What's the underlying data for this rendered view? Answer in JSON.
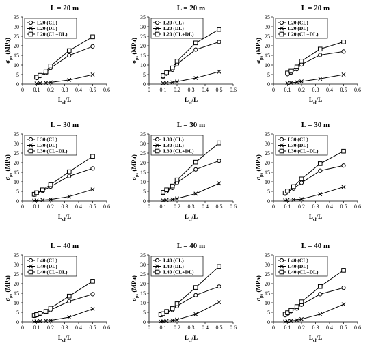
{
  "figure": {
    "panels": [
      {
        "row": 0,
        "col": 0,
        "title": "L = 20 m"
      },
      {
        "row": 0,
        "col": 1,
        "title": "L = 20 m"
      },
      {
        "row": 0,
        "col": 2,
        "title": "L = 20 m"
      },
      {
        "row": 1,
        "col": 0,
        "title": "L = 30 m"
      },
      {
        "row": 1,
        "col": 1,
        "title": "L = 30 m"
      },
      {
        "row": 1,
        "col": 2,
        "title": "L = 30 m"
      },
      {
        "row": 2,
        "col": 0,
        "title": "L = 40 m"
      },
      {
        "row": 2,
        "col": 1,
        "title": "L = 40 m"
      },
      {
        "row": 2,
        "col": 2,
        "title": "L = 40 m"
      }
    ]
  },
  "chart_data": [
    {
      "type": "line",
      "title": "L = 20 m",
      "xlabel": "Lcl/L",
      "xlabel_main": "L",
      "xlabel_sub": "cl",
      "xlabel_suffix": "/L",
      "ylabel_main": "σ",
      "ylabel_sub": "ps",
      "ylabel_suffix": " (MPa)",
      "xlim": [
        0,
        0.6
      ],
      "ylim": [
        0,
        35
      ],
      "xticks": [
        "0",
        "0.1",
        "0.2",
        "0.3",
        "0.4",
        "0.5",
        "0.6"
      ],
      "yticks": [
        "0",
        "5",
        "10",
        "15",
        "20",
        "25",
        "30",
        "35"
      ],
      "legend_position": "top-left",
      "grid": false,
      "x": [
        0.1,
        0.125,
        0.1667,
        0.2,
        0.333,
        0.5
      ],
      "series": [
        {
          "name": "L20 (CL)",
          "marker": "circle",
          "values": [
            3.2,
            4.2,
            5.8,
            8.5,
            15.0,
            19.7
          ]
        },
        {
          "name": "L20 (DL)",
          "marker": "x",
          "values": [
            0.3,
            0.4,
            0.6,
            0.9,
            2.2,
            5.0
          ]
        },
        {
          "name": "L20 (CL+DL)",
          "marker": "square",
          "values": [
            3.6,
            4.6,
            6.4,
            9.5,
            17.5,
            24.7
          ]
        }
      ]
    },
    {
      "type": "line",
      "title": "L = 20 m",
      "xlabel": "Lcl/L",
      "xlabel_main": "L",
      "xlabel_sub": "cl",
      "xlabel_suffix": "/L",
      "ylabel_main": "σ",
      "ylabel_sub": "ps",
      "ylabel_suffix": " (MPa)",
      "xlim": [
        0,
        0.6
      ],
      "ylim": [
        0,
        35
      ],
      "xticks": [
        "0",
        "0.1",
        "0.2",
        "0.3",
        "0.4",
        "0.5",
        "0.6"
      ],
      "yticks": [
        "0",
        "5",
        "10",
        "15",
        "20",
        "25",
        "30",
        "35"
      ],
      "legend_position": "top-left",
      "grid": false,
      "x": [
        0.1,
        0.125,
        0.1667,
        0.2,
        0.333,
        0.5
      ],
      "series": [
        {
          "name": "L20 (CL)",
          "marker": "circle",
          "values": [
            3.8,
            5.5,
            7.5,
            10.5,
            18.0,
            22.0
          ]
        },
        {
          "name": "L20 (DL)",
          "marker": "x",
          "values": [
            0.4,
            0.6,
            0.9,
            1.3,
            3.2,
            6.5
          ]
        },
        {
          "name": "L20 (CL+DL)",
          "marker": "square",
          "values": [
            4.5,
            6.0,
            8.5,
            12.0,
            21.5,
            28.5
          ]
        }
      ]
    },
    {
      "type": "line",
      "title": "L = 20 m",
      "xlabel": "Lcl/L",
      "xlabel_main": "L",
      "xlabel_sub": "cl",
      "xlabel_suffix": "/L",
      "ylabel_main": "σ",
      "ylabel_sub": "ps",
      "ylabel_suffix": " (MPa)",
      "xlim": [
        0,
        0.6
      ],
      "ylim": [
        0,
        35
      ],
      "xticks": [
        "0",
        "0.1",
        "0.2",
        "0.3",
        "0.4",
        "0.5",
        "0.6"
      ],
      "yticks": [
        "0",
        "5",
        "10",
        "15",
        "20",
        "25",
        "30",
        "35"
      ],
      "legend_position": "top-left",
      "grid": false,
      "x": [
        0.1,
        0.125,
        0.1667,
        0.2,
        0.333,
        0.5
      ],
      "series": [
        {
          "name": "L20 (CL)",
          "marker": "circle",
          "values": [
            5.2,
            6.0,
            7.8,
            10.3,
            15.2,
            17.0
          ]
        },
        {
          "name": "L20 (DL)",
          "marker": "x",
          "values": [
            0.5,
            0.7,
            1.0,
            1.4,
            2.8,
            5.0
          ]
        },
        {
          "name": "L20 (CL+DL)",
          "marker": "square",
          "values": [
            5.8,
            6.8,
            9.0,
            12.0,
            18.3,
            22.0
          ]
        }
      ]
    },
    {
      "type": "line",
      "title": "L = 30 m",
      "xlabel": "Lcl/L",
      "xlabel_main": "L",
      "xlabel_sub": "cl",
      "xlabel_suffix": "/L",
      "ylabel_main": "σ",
      "ylabel_sub": "ps",
      "ylabel_suffix": " (MPa)",
      "xlim": [
        0,
        0.6
      ],
      "ylim": [
        0,
        35
      ],
      "xticks": [
        "0",
        "0.1",
        "0.2",
        "0.3",
        "0.4",
        "0.5",
        "0.6"
      ],
      "yticks": [
        "0",
        "5",
        "10",
        "15",
        "20",
        "25",
        "30",
        "35"
      ],
      "legend_position": "top-left",
      "grid": false,
      "x": [
        0.0833,
        0.1,
        0.1429,
        0.2,
        0.333,
        0.5
      ],
      "series": [
        {
          "name": "L30 (CL)",
          "marker": "circle",
          "values": [
            3.3,
            4.0,
            5.3,
            7.5,
            13.0,
            17.0
          ]
        },
        {
          "name": "L30 (DL)",
          "marker": "x",
          "values": [
            0.2,
            0.3,
            0.5,
            0.8,
            2.3,
            6.0
          ]
        },
        {
          "name": "L30 (CL+DL)",
          "marker": "square",
          "values": [
            3.5,
            4.3,
            5.8,
            8.5,
            15.3,
            23.3
          ]
        }
      ]
    },
    {
      "type": "line",
      "title": "L = 30 m",
      "xlabel": "Lcl/L",
      "xlabel_main": "L",
      "xlabel_sub": "cl",
      "xlabel_suffix": "/L",
      "ylabel_main": "σ",
      "ylabel_sub": "ps",
      "ylabel_suffix": " (MPa)",
      "xlim": [
        0,
        0.6
      ],
      "ylim": [
        0,
        35
      ],
      "xticks": [
        "0",
        "0.1",
        "0.2",
        "0.3",
        "0.4",
        "0.5",
        "0.6"
      ],
      "yticks": [
        "0",
        "5",
        "10",
        "15",
        "20",
        "25",
        "30",
        "35"
      ],
      "legend_position": "top-left",
      "grid": false,
      "x": [
        0.1,
        0.125,
        0.1667,
        0.2,
        0.333,
        0.5
      ],
      "series": [
        {
          "name": "L30 (CL)",
          "marker": "circle",
          "values": [
            4.0,
            5.0,
            6.8,
            9.5,
            16.5,
            21.0
          ]
        },
        {
          "name": "L30 (DL)",
          "marker": "x",
          "values": [
            0.3,
            0.5,
            0.8,
            1.3,
            3.8,
            9.2
          ]
        },
        {
          "name": "L30 (CL+DL)",
          "marker": "square",
          "values": [
            4.5,
            5.8,
            7.8,
            11.0,
            20.3,
            30.3
          ]
        }
      ]
    },
    {
      "type": "line",
      "title": "L = 30 m",
      "xlabel": "Lcl/L",
      "xlabel_main": "L",
      "xlabel_sub": "cl",
      "xlabel_suffix": "/L",
      "ylabel_main": "σ",
      "ylabel_sub": "ps",
      "ylabel_suffix": " (MPa)",
      "xlim": [
        0,
        0.6
      ],
      "ylim": [
        0,
        35
      ],
      "xticks": [
        "0",
        "0.1",
        "0.2",
        "0.3",
        "0.4",
        "0.5",
        "0.6"
      ],
      "yticks": [
        "0",
        "5",
        "10",
        "15",
        "20",
        "25",
        "30",
        "35"
      ],
      "legend_position": "top-left",
      "grid": false,
      "x": [
        0.0833,
        0.1,
        0.1429,
        0.2,
        0.333,
        0.5
      ],
      "series": [
        {
          "name": "L30 (CL)",
          "marker": "circle",
          "values": [
            3.8,
            4.8,
            6.5,
            9.5,
            15.8,
            18.5
          ]
        },
        {
          "name": "L30 (DL)",
          "marker": "x",
          "values": [
            0.3,
            0.5,
            0.7,
            1.0,
            3.5,
            7.3
          ]
        },
        {
          "name": "L30 (CL+DL)",
          "marker": "square",
          "values": [
            4.2,
            5.2,
            7.5,
            11.5,
            19.5,
            26.0
          ]
        }
      ]
    },
    {
      "type": "line",
      "title": "L = 40 m",
      "xlabel": "Lcl/L",
      "xlabel_main": "L",
      "xlabel_sub": "cl",
      "xlabel_suffix": "/L",
      "ylabel_main": "σ",
      "ylabel_sub": "ps",
      "ylabel_suffix": " (MPa)",
      "xlim": [
        0,
        0.6
      ],
      "ylim": [
        0,
        35
      ],
      "xticks": [
        "0",
        "0.1",
        "0.2",
        "0.3",
        "0.4",
        "0.5",
        "0.6"
      ],
      "yticks": [
        "0",
        "5",
        "10",
        "15",
        "20",
        "25",
        "30",
        "35"
      ],
      "legend_position": "top-left",
      "grid": false,
      "x": [
        0.0833,
        0.1,
        0.125,
        0.1667,
        0.2,
        0.333,
        0.5
      ],
      "series": [
        {
          "name": "L40 (CL)",
          "marker": "circle",
          "values": [
            3.2,
            3.5,
            4.2,
            5.0,
            6.3,
            10.8,
            14.5
          ]
        },
        {
          "name": "L40 (DL)",
          "marker": "x",
          "values": [
            0.2,
            0.3,
            0.4,
            0.6,
            0.8,
            2.5,
            6.8
          ]
        },
        {
          "name": "L40 (CL+DL)",
          "marker": "square",
          "values": [
            3.4,
            3.8,
            4.5,
            5.5,
            7.2,
            13.5,
            21.3
          ]
        }
      ]
    },
    {
      "type": "line",
      "title": "L = 40 m",
      "xlabel": "Lcl/L",
      "xlabel_main": "L",
      "xlabel_sub": "cl",
      "xlabel_suffix": "/L",
      "ylabel_main": "σ",
      "ylabel_sub": "ps",
      "ylabel_suffix": " (MPa)",
      "xlim": [
        0,
        0.6
      ],
      "ylim": [
        0,
        35
      ],
      "xticks": [
        "0",
        "0.1",
        "0.2",
        "0.3",
        "0.4",
        "0.5",
        "0.6"
      ],
      "yticks": [
        "0",
        "5",
        "10",
        "15",
        "20",
        "25",
        "30",
        "35"
      ],
      "legend_position": "top-left",
      "grid": false,
      "x": [
        0.0833,
        0.1,
        0.125,
        0.1667,
        0.2,
        0.333,
        0.5
      ],
      "series": [
        {
          "name": "L40 (CL)",
          "marker": "circle",
          "values": [
            3.5,
            4.0,
            5.0,
            6.3,
            8.3,
            14.0,
            18.5
          ]
        },
        {
          "name": "L40 (DL)",
          "marker": "x",
          "values": [
            0.2,
            0.3,
            0.5,
            0.8,
            1.2,
            4.0,
            10.3
          ]
        },
        {
          "name": "L40 (CL+DL)",
          "marker": "square",
          "values": [
            3.8,
            4.3,
            5.5,
            7.0,
            9.5,
            18.0,
            29.0
          ]
        }
      ]
    },
    {
      "type": "line",
      "title": "L = 40 m",
      "xlabel": "Lcl/L",
      "xlabel_main": "L",
      "xlabel_sub": "cl",
      "xlabel_suffix": "/L",
      "ylabel_main": "σ",
      "ylabel_sub": "ps",
      "ylabel_suffix": " (MPa)",
      "xlim": [
        0,
        0.6
      ],
      "ylim": [
        0,
        35
      ],
      "xticks": [
        "0",
        "0.1",
        "0.2",
        "0.3",
        "0.4",
        "0.5",
        "0.6"
      ],
      "yticks": [
        "0",
        "5",
        "10",
        "15",
        "20",
        "25",
        "30",
        "35"
      ],
      "legend_position": "top-left",
      "grid": false,
      "x": [
        0.0833,
        0.1,
        0.125,
        0.1667,
        0.2,
        0.333,
        0.5
      ],
      "series": [
        {
          "name": "L40 (CL)",
          "marker": "circle",
          "values": [
            3.5,
            4.2,
            5.5,
            7.0,
            9.0,
            14.5,
            17.8
          ]
        },
        {
          "name": "L40 (DL)",
          "marker": "x",
          "values": [
            0.2,
            0.4,
            0.6,
            0.9,
            1.5,
            4.0,
            9.2
          ]
        },
        {
          "name": "L40 (CL+DL)",
          "marker": "square",
          "values": [
            4.0,
            4.8,
            6.0,
            8.0,
            10.5,
            18.5,
            27.0
          ]
        }
      ]
    }
  ]
}
